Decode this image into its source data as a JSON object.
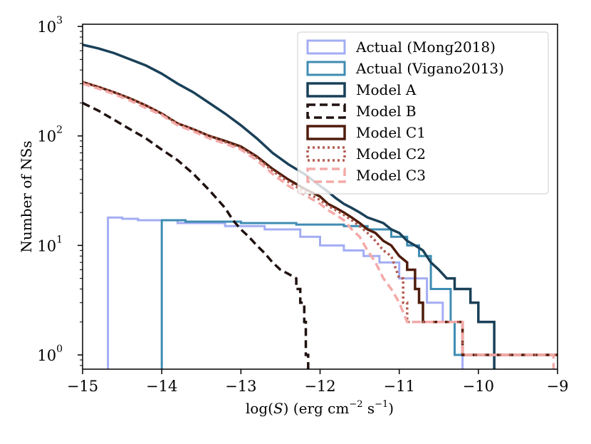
{
  "chart_data": {
    "type": "line",
    "subtype": "step-histogram",
    "title": "",
    "xlabel": "log(S) (erg cm⁻² s⁻¹)",
    "ylabel": "Number of NSs",
    "xlim": [
      -15,
      -9
    ],
    "ylim_log10": [
      -0.13,
      3.02
    ],
    "yscale": "log",
    "x_ticks": [
      -15,
      -14,
      -13,
      -12,
      -11,
      -10,
      -9
    ],
    "x_tick_labels": [
      "−15",
      "−14",
      "−13",
      "−12",
      "−11",
      "−10",
      "−9"
    ],
    "y_ticks": [
      1,
      10,
      100,
      1000
    ],
    "y_tick_labels": [
      {
        "base": "10",
        "exp": "0"
      },
      {
        "base": "10",
        "exp": "1"
      },
      {
        "base": "10",
        "exp": "2"
      },
      {
        "base": "10",
        "exp": "3"
      }
    ],
    "legend_position": "upper-right",
    "series": [
      {
        "name": "Actual (Mong2018)",
        "color": "#a3adf4",
        "dash": "solid",
        "width": 3,
        "points": [
          [
            -14.68,
            0.7
          ],
          [
            -14.68,
            18
          ],
          [
            -14.5,
            18
          ],
          [
            -14.5,
            17.5
          ],
          [
            -14.3,
            17.5
          ],
          [
            -14.3,
            17
          ],
          [
            -13.8,
            17
          ],
          [
            -13.8,
            16
          ],
          [
            -13.2,
            16
          ],
          [
            -13.2,
            15
          ],
          [
            -12.7,
            15
          ],
          [
            -12.7,
            14
          ],
          [
            -12.25,
            14
          ],
          [
            -12.25,
            12
          ],
          [
            -12.0,
            12
          ],
          [
            -12.0,
            10
          ],
          [
            -11.7,
            10
          ],
          [
            -11.7,
            9
          ],
          [
            -11.45,
            9
          ],
          [
            -11.45,
            8
          ],
          [
            -11.25,
            8
          ],
          [
            -11.25,
            7
          ],
          [
            -11.0,
            7
          ],
          [
            -11.0,
            5
          ],
          [
            -10.65,
            5
          ],
          [
            -10.65,
            3
          ],
          [
            -10.45,
            3
          ],
          [
            -10.45,
            2
          ],
          [
            -10.2,
            2
          ],
          [
            -10.2,
            0.7
          ]
        ]
      },
      {
        "name": "Actual (Vigano2013)",
        "color": "#3f8cb3",
        "dash": "solid",
        "width": 3,
        "points": [
          [
            -14.0,
            0.7
          ],
          [
            -14.0,
            17
          ],
          [
            -13.7,
            17
          ],
          [
            -13.7,
            16.5
          ],
          [
            -13.0,
            16.5
          ],
          [
            -13.0,
            16
          ],
          [
            -12.3,
            16
          ],
          [
            -12.3,
            15.5
          ],
          [
            -11.7,
            15.5
          ],
          [
            -11.7,
            15
          ],
          [
            -11.4,
            15
          ],
          [
            -11.4,
            14
          ],
          [
            -11.1,
            14
          ],
          [
            -11.1,
            12
          ],
          [
            -10.9,
            12
          ],
          [
            -10.9,
            10
          ],
          [
            -10.75,
            10
          ],
          [
            -10.75,
            8
          ],
          [
            -10.6,
            8
          ],
          [
            -10.6,
            4
          ],
          [
            -10.35,
            4
          ],
          [
            -10.35,
            2
          ],
          [
            -10.3,
            2
          ],
          [
            -10.3,
            1
          ],
          [
            -9.8,
            1
          ],
          [
            -9.8,
            0.7
          ]
        ]
      },
      {
        "name": "Model A",
        "color": "#1a4058",
        "dash": "solid",
        "width": 3.5,
        "points": [
          [
            -15.0,
            680
          ],
          [
            -14.8,
            630
          ],
          [
            -14.6,
            570
          ],
          [
            -14.4,
            500
          ],
          [
            -14.2,
            440
          ],
          [
            -14.0,
            370
          ],
          [
            -13.8,
            300
          ],
          [
            -13.6,
            250
          ],
          [
            -13.4,
            200
          ],
          [
            -13.2,
            160
          ],
          [
            -13.0,
            125
          ],
          [
            -12.8,
            95
          ],
          [
            -12.6,
            70
          ],
          [
            -12.4,
            55
          ],
          [
            -12.2,
            45
          ],
          [
            -12.0,
            35
          ],
          [
            -11.9,
            31
          ],
          [
            -11.8,
            27
          ],
          [
            -11.7,
            24
          ],
          [
            -11.6,
            22
          ],
          [
            -11.5,
            20
          ],
          [
            -11.4,
            18
          ],
          [
            -11.3,
            17
          ],
          [
            -11.2,
            16
          ],
          [
            -11.1,
            14
          ],
          [
            -11.0,
            13
          ],
          [
            -10.9,
            11
          ],
          [
            -10.8,
            10
          ],
          [
            -10.7,
            9
          ],
          [
            -10.6,
            7
          ],
          [
            -10.5,
            6
          ],
          [
            -10.4,
            5
          ],
          [
            -10.3,
            5
          ],
          [
            -10.3,
            4
          ],
          [
            -10.1,
            4
          ],
          [
            -10.1,
            3
          ],
          [
            -10.0,
            3
          ],
          [
            -10.0,
            2
          ],
          [
            -9.8,
            2
          ],
          [
            -9.8,
            0.7
          ]
        ]
      },
      {
        "name": "Model B",
        "color": "#201210",
        "dash": "dashed",
        "width": 3.5,
        "points": [
          [
            -15.0,
            200
          ],
          [
            -14.8,
            170
          ],
          [
            -14.6,
            140
          ],
          [
            -14.4,
            115
          ],
          [
            -14.2,
            95
          ],
          [
            -14.0,
            75
          ],
          [
            -13.8,
            60
          ],
          [
            -13.6,
            45
          ],
          [
            -13.4,
            32
          ],
          [
            -13.2,
            22
          ],
          [
            -13.1,
            17
          ],
          [
            -13.0,
            14
          ],
          [
            -12.9,
            12
          ],
          [
            -12.8,
            10
          ],
          [
            -12.7,
            8.5
          ],
          [
            -12.6,
            7
          ],
          [
            -12.5,
            6
          ],
          [
            -12.4,
            5.5
          ],
          [
            -12.3,
            5
          ],
          [
            -12.3,
            4
          ],
          [
            -12.25,
            4
          ],
          [
            -12.25,
            3
          ],
          [
            -12.2,
            3
          ],
          [
            -12.2,
            2
          ],
          [
            -12.18,
            2
          ],
          [
            -12.18,
            1
          ],
          [
            -12.15,
            1
          ],
          [
            -12.15,
            0.7
          ]
        ]
      },
      {
        "name": "Model C1",
        "color": "#4f1c0c",
        "dash": "solid",
        "width": 3.5,
        "points": [
          [
            -15.0,
            310
          ],
          [
            -14.8,
            280
          ],
          [
            -14.6,
            250
          ],
          [
            -14.4,
            220
          ],
          [
            -14.2,
            190
          ],
          [
            -14.0,
            160
          ],
          [
            -13.8,
            130
          ],
          [
            -13.6,
            115
          ],
          [
            -13.4,
            100
          ],
          [
            -13.2,
            90
          ],
          [
            -13.0,
            80
          ],
          [
            -12.8,
            65
          ],
          [
            -12.6,
            50
          ],
          [
            -12.4,
            40
          ],
          [
            -12.2,
            33
          ],
          [
            -12.0,
            28
          ],
          [
            -11.9,
            24
          ],
          [
            -11.8,
            22
          ],
          [
            -11.7,
            20
          ],
          [
            -11.6,
            18
          ],
          [
            -11.5,
            16
          ],
          [
            -11.4,
            14
          ],
          [
            -11.3,
            13
          ],
          [
            -11.2,
            11
          ],
          [
            -11.1,
            10
          ],
          [
            -11.0,
            8
          ],
          [
            -10.9,
            7
          ],
          [
            -10.9,
            6
          ],
          [
            -10.8,
            6
          ],
          [
            -10.8,
            4
          ],
          [
            -10.75,
            4
          ],
          [
            -10.75,
            3
          ],
          [
            -10.7,
            3
          ],
          [
            -10.7,
            2
          ],
          [
            -10.2,
            2
          ],
          [
            -10.2,
            1
          ],
          [
            -9.0,
            1
          ]
        ]
      },
      {
        "name": "Model C2",
        "color": "#b25b4f",
        "dash": "dotted",
        "width": 3.5,
        "points": [
          [
            -15.0,
            310
          ],
          [
            -14.8,
            280
          ],
          [
            -14.6,
            250
          ],
          [
            -14.4,
            220
          ],
          [
            -14.2,
            190
          ],
          [
            -14.0,
            160
          ],
          [
            -13.8,
            130
          ],
          [
            -13.6,
            115
          ],
          [
            -13.4,
            100
          ],
          [
            -13.2,
            88
          ],
          [
            -13.0,
            78
          ],
          [
            -12.8,
            63
          ],
          [
            -12.6,
            48
          ],
          [
            -12.4,
            38
          ],
          [
            -12.2,
            31
          ],
          [
            -12.0,
            26
          ],
          [
            -11.9,
            23
          ],
          [
            -11.8,
            21
          ],
          [
            -11.7,
            19
          ],
          [
            -11.6,
            17
          ],
          [
            -11.5,
            15
          ],
          [
            -11.4,
            13
          ],
          [
            -11.3,
            11
          ],
          [
            -11.2,
            9
          ],
          [
            -11.1,
            8
          ],
          [
            -11.0,
            5
          ],
          [
            -10.95,
            5
          ],
          [
            -10.95,
            3
          ],
          [
            -10.9,
            3
          ],
          [
            -10.9,
            2
          ],
          [
            -10.2,
            2
          ],
          [
            -10.2,
            1
          ],
          [
            -9.0,
            1
          ]
        ]
      },
      {
        "name": "Model C3",
        "color": "#f4aaa8",
        "dash": "dashed",
        "width": 3.5,
        "points": [
          [
            -15.0,
            300
          ],
          [
            -14.8,
            270
          ],
          [
            -14.6,
            240
          ],
          [
            -14.4,
            210
          ],
          [
            -14.2,
            180
          ],
          [
            -14.0,
            155
          ],
          [
            -13.8,
            125
          ],
          [
            -13.6,
            110
          ],
          [
            -13.4,
            95
          ],
          [
            -13.2,
            85
          ],
          [
            -13.0,
            75
          ],
          [
            -12.8,
            60
          ],
          [
            -12.6,
            45
          ],
          [
            -12.4,
            35
          ],
          [
            -12.2,
            29
          ],
          [
            -12.0,
            24
          ],
          [
            -11.9,
            21
          ],
          [
            -11.8,
            19
          ],
          [
            -11.7,
            17
          ],
          [
            -11.6,
            14
          ],
          [
            -11.5,
            12
          ],
          [
            -11.4,
            9
          ],
          [
            -11.3,
            7
          ],
          [
            -11.2,
            5
          ],
          [
            -11.1,
            4
          ],
          [
            -11.0,
            3
          ],
          [
            -10.9,
            2
          ],
          [
            -10.2,
            2
          ],
          [
            -10.2,
            1
          ],
          [
            -9.05,
            1
          ],
          [
            -9.05,
            0.7
          ]
        ]
      }
    ]
  }
}
